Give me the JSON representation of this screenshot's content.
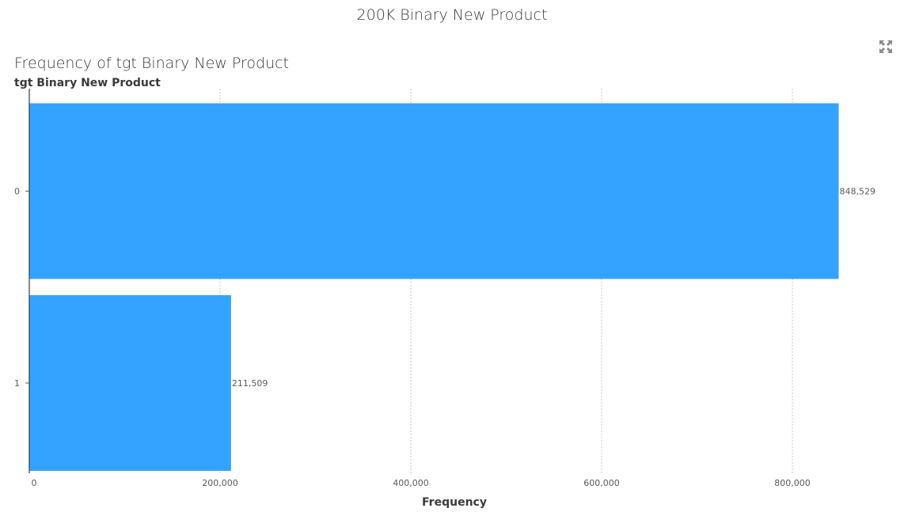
{
  "page": {
    "title": "200K Binary New Product"
  },
  "toolbar": {
    "maximize_icon": "maximize-icon"
  },
  "chart": {
    "title": "Frequency of tgt Binary New Product"
  },
  "colors": {
    "bar": "#33A3FF",
    "text": "#3a3a3a",
    "tick": "#5a5a5a",
    "grid": "#c8c8c8",
    "axis": "#3a3a3a"
  },
  "chart_data": {
    "type": "bar",
    "orientation": "horizontal",
    "title": "Frequency of tgt Binary New Product",
    "categories": [
      "0",
      "1"
    ],
    "values": [
      848529,
      211509
    ],
    "data_labels": [
      "848,529",
      "211,509"
    ],
    "xlabel": "Frequency",
    "ylabel": "tgt Binary New Product",
    "xlim": [
      0,
      880000
    ],
    "xticks": [
      0,
      200000,
      400000,
      600000,
      800000
    ],
    "xtick_labels": [
      "0",
      "200,000",
      "400,000",
      "600,000",
      "800,000"
    ],
    "grid": "vertical",
    "legend": "none"
  }
}
